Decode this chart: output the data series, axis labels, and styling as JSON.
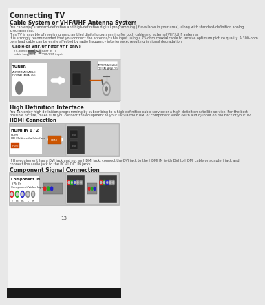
{
  "title": "Connecting TV",
  "bg_color": "#e8e8e8",
  "page_bg": "#f0f0f0",
  "white": "#ffffff",
  "dark_gray": "#555555",
  "med_gray": "#c0c0c0",
  "light_gray": "#d8d8d8",
  "diagram_bg": "#b8b8b8",
  "diagram_inner": "#d0d0d0",
  "text_dark": "#222222",
  "text_med": "#444444",
  "orange": "#cc5500",
  "section1_title": "Cable System or VHF/UHF Antenna System",
  "section2_title": "High Definition Interface",
  "hdmi_title": "HDMI Connection",
  "section3_title": "Component Signal Connection",
  "page_number": "13",
  "body1_lines": [
    "You can enjoy standard-definition and high-definition digital programming (if available in your area), along with standard-definition analog",
    "programming.",
    "This TV is capable of receiving unscrambled digital programming for both cable and external VHF/UHF antenna.",
    "It is strongly recommended that you connect the antenna/cable input using a 75-ohm coaxial cable to receive optimum picture quality. A 300-ohm",
    "twin lead cable can be easily affected by radio frequency interference, resulting in signal degradation."
  ],
  "cable_label": "Cable or VHF/UHF(for VHF only)",
  "body2_lines": [
    "You can enjoy high definition programming by subscribing to a high-definition cable service or a high-definition satellite service. For the best",
    "possible picture, make sure you connect the equipment to your TV via the HDMI or component video (with audio) input on the back of your TV."
  ],
  "hdmi_note_lines": [
    "If the equipment has a DVI jack and not an HDMI jack, connect the DVI jack to the HDMI IN (with DVI to HDMI cable or adapter) jack and",
    "connect the audio jack to the PC AUDIO IN jacks."
  ]
}
